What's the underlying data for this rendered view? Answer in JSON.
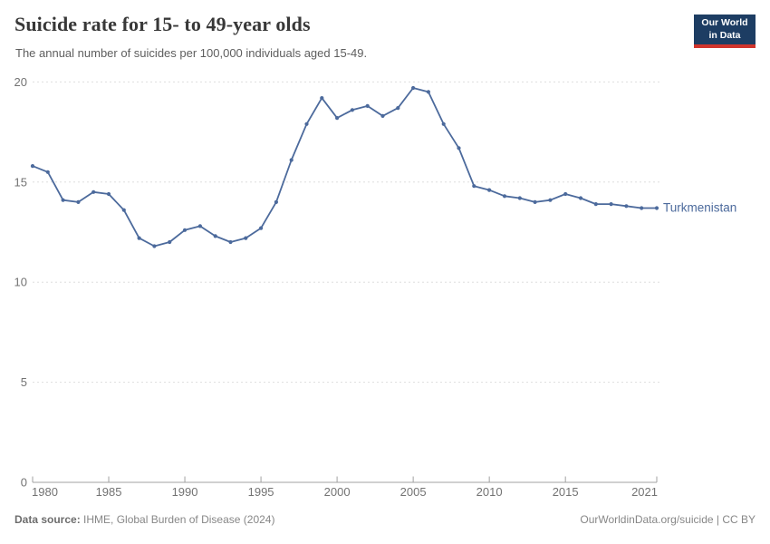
{
  "header": {
    "title": "Suicide rate for 15- to 49-year olds",
    "subtitle": "The annual number of suicides per 100,000 individuals aged 15-49.",
    "logo": {
      "line1": "Our World",
      "line2": "in Data",
      "bg_color": "#1d3d63",
      "bar_color": "#d0342c"
    }
  },
  "chart_data": {
    "type": "line",
    "title": "Suicide rate for 15- to 49-year olds",
    "subtitle": "The annual number of suicides per 100,000 individuals aged 15-49.",
    "xlabel": "",
    "ylabel": "",
    "xlim": [
      1980,
      2021
    ],
    "ylim": [
      0,
      20
    ],
    "grid": "horizontal-dashed",
    "legend_position": "end-of-line-label",
    "x_ticks": [
      1980,
      1985,
      1990,
      1995,
      2000,
      2005,
      2010,
      2015,
      2021
    ],
    "y_ticks": [
      0,
      5,
      10,
      15,
      20
    ],
    "x": [
      1980,
      1981,
      1982,
      1983,
      1984,
      1985,
      1986,
      1987,
      1988,
      1989,
      1990,
      1991,
      1992,
      1993,
      1994,
      1995,
      1996,
      1997,
      1998,
      1999,
      2000,
      2001,
      2002,
      2003,
      2004,
      2005,
      2006,
      2007,
      2008,
      2009,
      2010,
      2011,
      2012,
      2013,
      2014,
      2015,
      2016,
      2017,
      2018,
      2019,
      2020,
      2021
    ],
    "series": [
      {
        "name": "Turkmenistan",
        "color": "#4c6a9c",
        "values": [
          15.8,
          15.5,
          14.1,
          14.0,
          14.5,
          14.4,
          13.6,
          12.2,
          11.8,
          12.0,
          12.6,
          12.8,
          12.3,
          12.0,
          12.2,
          12.7,
          14.0,
          16.1,
          17.9,
          19.2,
          18.2,
          18.6,
          18.8,
          18.3,
          18.7,
          19.7,
          19.5,
          17.9,
          16.7,
          14.8,
          14.6,
          14.3,
          14.2,
          14.0,
          14.1,
          14.4,
          14.2,
          13.9,
          13.9,
          13.8,
          13.7,
          13.7
        ]
      }
    ],
    "style": {
      "gridline_color": "#dedede",
      "axis_color": "#a1a1a1",
      "tick_label_color": "#737373"
    }
  },
  "footer": {
    "source_label": "Data source:",
    "source_text": " IHME, Global Burden of Disease (2024)",
    "credit": "OurWorldinData.org/suicide | CC BY"
  }
}
